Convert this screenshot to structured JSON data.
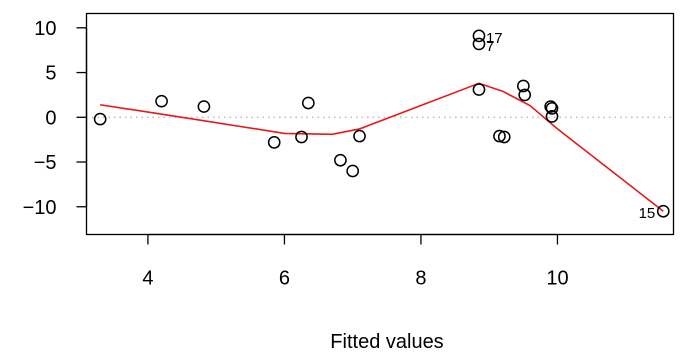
{
  "chart_data": {
    "type": "scatter",
    "title": "",
    "xlabel": "Fitted values",
    "ylabel": "",
    "xlim": [
      3.1,
      11.7
    ],
    "ylim": [
      -13.1,
      11.6
    ],
    "xticks": [
      4,
      6,
      8,
      10
    ],
    "yticks": [
      -10,
      -5,
      0,
      5,
      10
    ],
    "xtick_labels": [
      "4",
      "6",
      "8",
      "10"
    ],
    "ytick_labels": [
      "−10",
      "−5",
      "0",
      "5",
      "10"
    ],
    "grid": false,
    "reference_line_y": 0,
    "points": [
      {
        "x": 3.3,
        "y": -0.2
      },
      {
        "x": 4.2,
        "y": 1.8
      },
      {
        "x": 4.82,
        "y": 1.2
      },
      {
        "x": 5.85,
        "y": -2.8
      },
      {
        "x": 6.25,
        "y": -2.2
      },
      {
        "x": 6.35,
        "y": 1.6
      },
      {
        "x": 6.82,
        "y": -4.8
      },
      {
        "x": 7.0,
        "y": -6.0
      },
      {
        "x": 7.1,
        "y": -2.1
      },
      {
        "x": 8.85,
        "y": 9.1,
        "label": "17"
      },
      {
        "x": 8.85,
        "y": 8.2,
        "label": "7"
      },
      {
        "x": 8.85,
        "y": 3.1
      },
      {
        "x": 9.15,
        "y": -2.1
      },
      {
        "x": 9.22,
        "y": -2.2
      },
      {
        "x": 9.5,
        "y": 3.5
      },
      {
        "x": 9.52,
        "y": 2.5
      },
      {
        "x": 9.9,
        "y": 1.2
      },
      {
        "x": 9.92,
        "y": 1.0
      },
      {
        "x": 9.92,
        "y": 0.1
      },
      {
        "x": 11.55,
        "y": -10.5,
        "label": "15"
      }
    ],
    "smoother": {
      "x": [
        3.3,
        4.5,
        6.0,
        6.7,
        7.1,
        8.85,
        9.2,
        9.6,
        10.0,
        11.55
      ],
      "y": [
        1.4,
        0.0,
        -1.8,
        -1.9,
        -1.3,
        3.8,
        2.9,
        1.3,
        -1.3,
        -10.5
      ]
    },
    "colors": {
      "points": "#000000",
      "smoother": "#e8191b",
      "reference": "#bfbfbf",
      "axes": "#000000"
    }
  }
}
